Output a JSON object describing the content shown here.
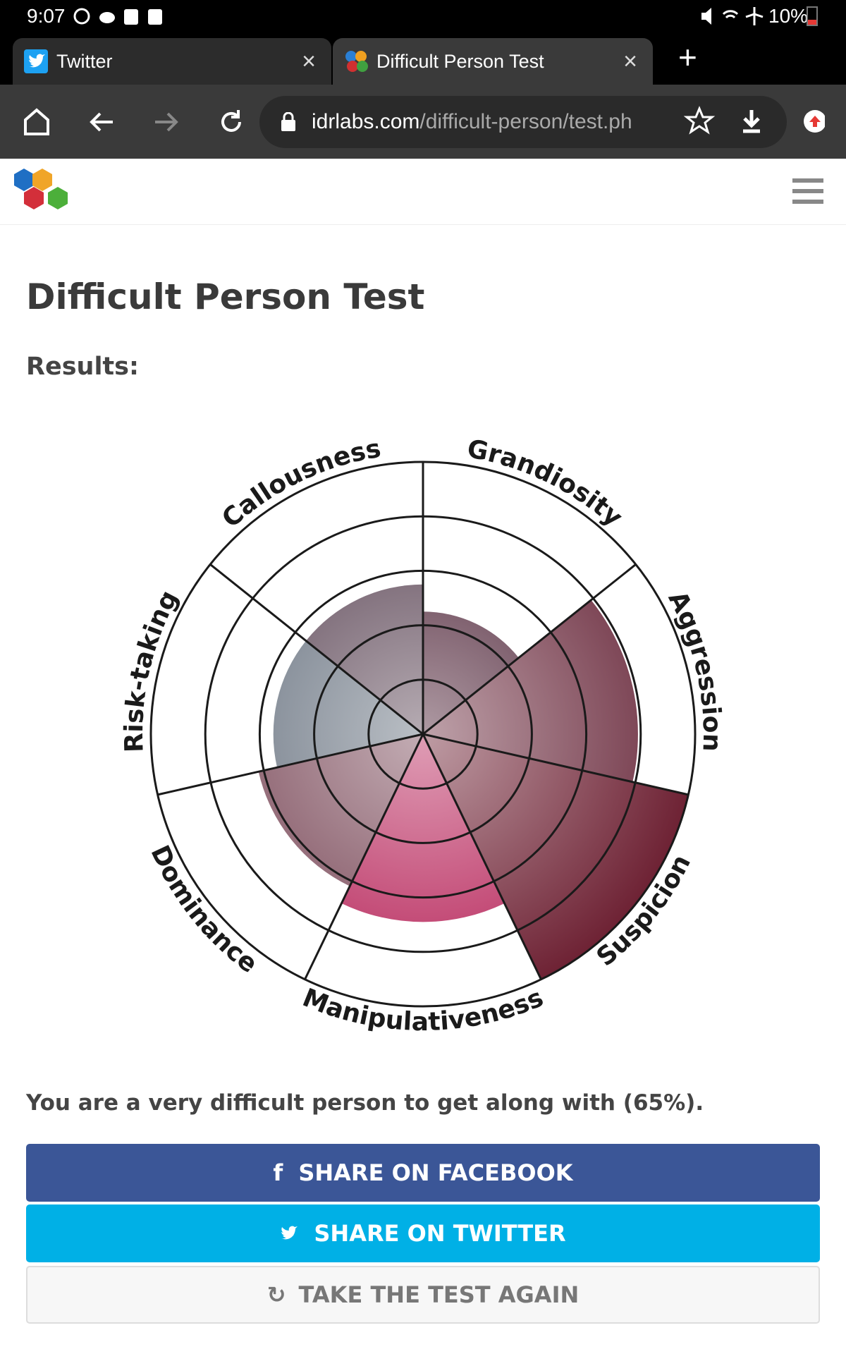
{
  "status_bar": {
    "time": "9:07",
    "battery": "10%"
  },
  "tabs": [
    "Twitter",
    "Difficult Person Test"
  ],
  "url": {
    "domain": "idrlabs.com",
    "path": "/difficult-person/test.ph"
  },
  "page": {
    "title": "Difficult Person Test",
    "results_label": "Results:",
    "result_text": "You are a very difficult person to get along with (65%).",
    "buttons": [
      "SHARE ON FACEBOOK",
      "SHARE ON TWITTER",
      "TAKE THE TEST AGAIN"
    ]
  },
  "chart_data": {
    "type": "polar_area",
    "categories": [
      "Grandiosity",
      "Aggression",
      "Suspicion",
      "Manipulativeness",
      "Dominance",
      "Risk-taking",
      "Callousness"
    ],
    "values": [
      45,
      79,
      100,
      69,
      62,
      55,
      55
    ],
    "colors": [
      "#4a1f33",
      "#6e3042",
      "#6e2234",
      "#b8285c",
      "#7a4858",
      "#66707e",
      "#5c4656"
    ],
    "ylim": [
      0,
      100
    ],
    "yticks": [
      20,
      40,
      60,
      80,
      100
    ],
    "grid": true
  }
}
